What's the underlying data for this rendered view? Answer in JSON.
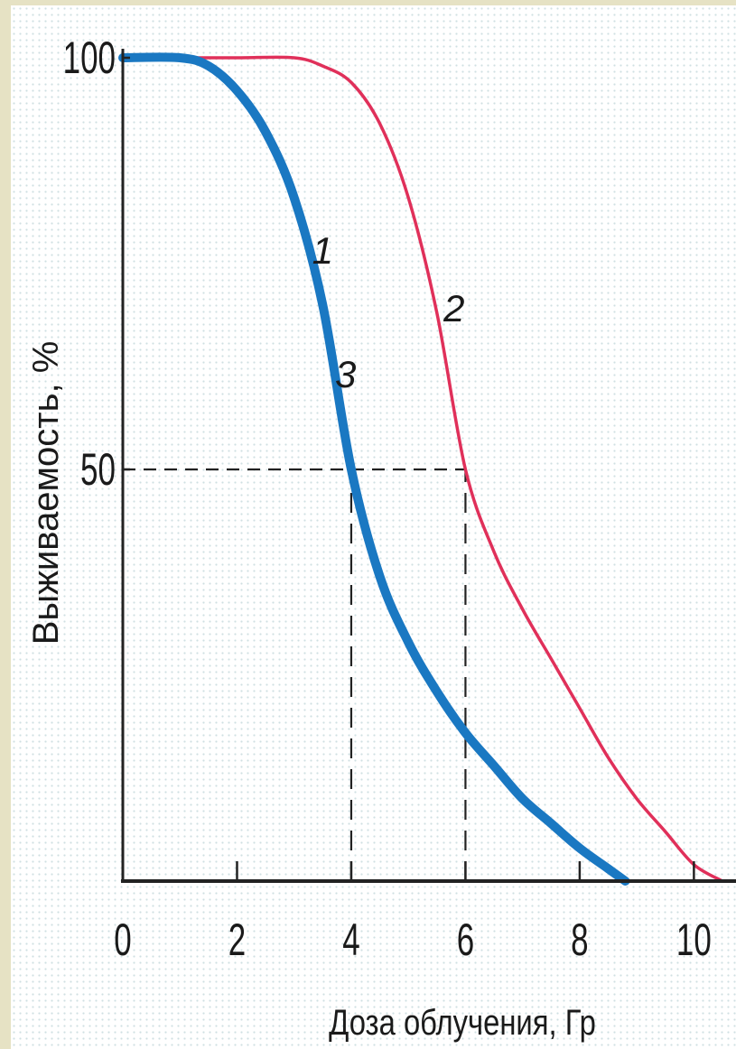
{
  "chart_data": {
    "type": "line",
    "xlabel": "Доза облучения, Гр",
    "ylabel": "Выживаемость, %",
    "xlim": [
      0,
      10.5
    ],
    "ylim": [
      0,
      100
    ],
    "x_ticks": [
      "0",
      "2",
      "4",
      "6",
      "8",
      "10"
    ],
    "x_tick_values": [
      0,
      2,
      4,
      6,
      8,
      10
    ],
    "y_ticks": [
      "100",
      "50"
    ],
    "y_tick_values": [
      100,
      50
    ],
    "grid": false,
    "series": [
      {
        "name": "",
        "color": "#1a78c2",
        "x": [
          0,
          1.0,
          1.5,
          2.0,
          2.5,
          3.0,
          3.5,
          4.0,
          4.5,
          5.0,
          5.5,
          6.0,
          6.5,
          7.0,
          7.5,
          8.0,
          8.5,
          8.8
        ],
        "y": [
          100,
          100,
          99,
          96,
          91,
          83,
          70,
          50,
          37,
          29,
          23,
          18,
          14,
          10,
          7,
          4,
          1.5,
          0
        ]
      },
      {
        "name": "",
        "color": "#e0305a",
        "x": [
          0,
          1.0,
          2.0,
          3.0,
          3.5,
          4.0,
          4.5,
          5.0,
          5.5,
          6.0,
          6.5,
          7.0,
          7.5,
          8.0,
          8.5,
          9.0,
          9.5,
          10.0,
          10.5
        ],
        "y": [
          100,
          100,
          100,
          100,
          99,
          97,
          92,
          83,
          69,
          50,
          40,
          33,
          27,
          21,
          15,
          10,
          6,
          2,
          0
        ]
      }
    ],
    "annotations": [
      {
        "text": "1",
        "x": 3.5,
        "y": 75
      },
      {
        "text": "2",
        "x": 5.8,
        "y": 68
      },
      {
        "text": "3",
        "x": 3.9,
        "y": 60
      }
    ],
    "reference_lines": [
      {
        "axis": "y",
        "value": 50,
        "to_x": 6,
        "style": "dashed"
      },
      {
        "axis": "x",
        "value": 4,
        "to_y": 50,
        "style": "dashed"
      },
      {
        "axis": "x",
        "value": 6,
        "to_y": 50,
        "style": "dashed"
      }
    ]
  }
}
